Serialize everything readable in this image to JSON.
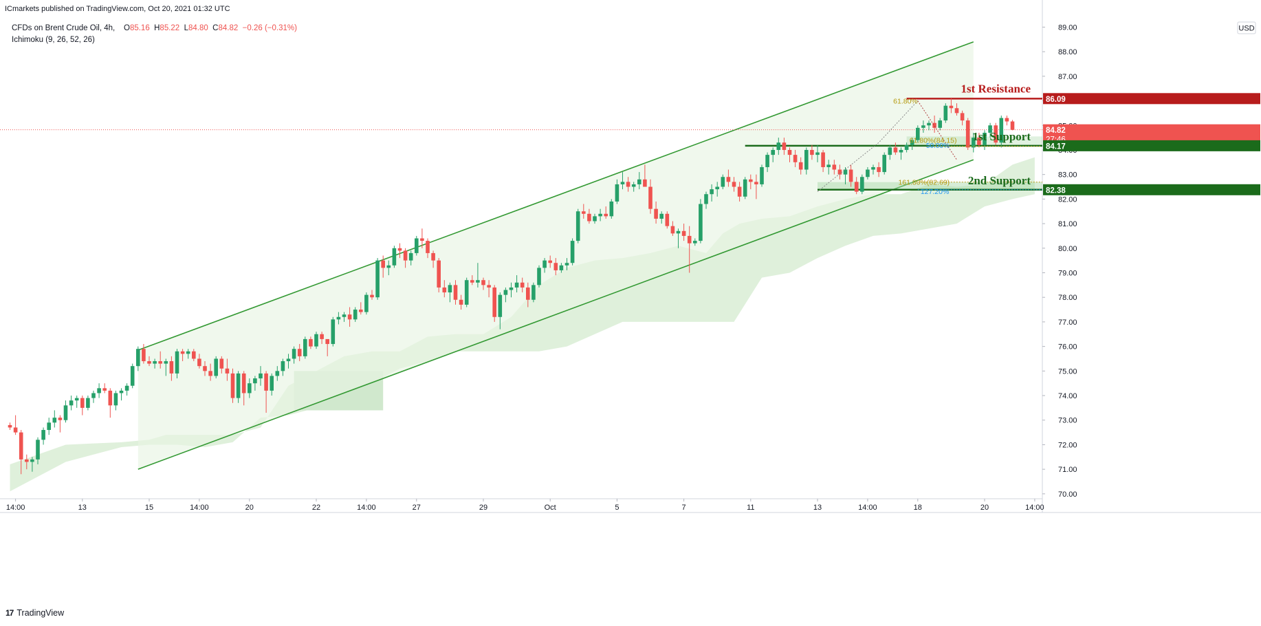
{
  "header": {
    "published": "ICmarkets published on TradingView.com, Oct 20, 2021 01:32 UTC",
    "symbol": "CFDs on Brent Crude Oil, 4h,",
    "ohlc": {
      "o_label": "O",
      "o": "85.16",
      "h_label": "H",
      "h": "85.22",
      "l_label": "L",
      "l": "84.80",
      "c_label": "C",
      "c": "84.82",
      "change": "−0.26 (−0.31%)"
    },
    "indicator": "Ichimoku (9, 26, 52, 26)"
  },
  "currency": "USD",
  "footer": {
    "brand": "TradingView",
    "logo": "17"
  },
  "colors": {
    "bull": "#26a069",
    "bear": "#ef5350",
    "channel": "#339933",
    "channel_fill": "#e8f5e3",
    "cloud": "#dff0db",
    "cloud_dark": "#d0e8cd",
    "resistance": "#b71c1c",
    "support": "#1b6b1b",
    "fib_gold": "#b59a10",
    "fib_blue": "#2196f3"
  },
  "chart_data": {
    "type": "candlestick",
    "y_range": [
      69.8,
      89.6
    ],
    "y_ticks": [
      "89.00",
      "88.00",
      "87.00",
      "86.00",
      "85.00",
      "84.00",
      "83.00",
      "82.00",
      "81.00",
      "80.00",
      "79.00",
      "78.00",
      "77.00",
      "76.00",
      "75.00",
      "74.00",
      "73.00",
      "72.00",
      "71.00",
      "70.00"
    ],
    "x_ticks": [
      {
        "label": "14:00",
        "i": 1
      },
      {
        "label": "13",
        "i": 13
      },
      {
        "label": "15",
        "i": 25
      },
      {
        "label": "14:00",
        "i": 34
      },
      {
        "label": "20",
        "i": 43
      },
      {
        "label": "22",
        "i": 55
      },
      {
        "label": "14:00",
        "i": 64
      },
      {
        "label": "27",
        "i": 73
      },
      {
        "label": "29",
        "i": 85
      },
      {
        "label": "Oct",
        "i": 97
      },
      {
        "label": "5",
        "i": 109
      },
      {
        "label": "7",
        "i": 121
      },
      {
        "label": "11",
        "i": 133
      },
      {
        "label": "13",
        "i": 145
      },
      {
        "label": "14:00",
        "i": 154
      },
      {
        "label": "18",
        "i": 163
      },
      {
        "label": "20",
        "i": 175
      },
      {
        "label": "14:00",
        "i": 184
      }
    ],
    "candles": [
      [
        72.8,
        72.9,
        72.6,
        72.7
      ],
      [
        72.7,
        73.2,
        72.4,
        72.5
      ],
      [
        72.5,
        72.6,
        70.8,
        71.4
      ],
      [
        71.4,
        71.6,
        71.0,
        71.3
      ],
      [
        71.3,
        71.5,
        70.9,
        71.4
      ],
      [
        71.4,
        72.3,
        71.2,
        72.2
      ],
      [
        72.2,
        72.7,
        72.0,
        72.6
      ],
      [
        72.6,
        73.1,
        72.4,
        72.9
      ],
      [
        72.9,
        73.4,
        72.7,
        73.1
      ],
      [
        73.1,
        73.2,
        72.5,
        73.0
      ],
      [
        73.0,
        73.8,
        72.9,
        73.6
      ],
      [
        73.6,
        74.0,
        73.4,
        73.8
      ],
      [
        73.8,
        74.0,
        73.5,
        73.9
      ],
      [
        73.9,
        74.0,
        73.2,
        73.5
      ],
      [
        73.5,
        74.0,
        73.4,
        73.9
      ],
      [
        73.9,
        74.2,
        73.7,
        74.1
      ],
      [
        74.1,
        74.5,
        73.9,
        74.3
      ],
      [
        74.3,
        74.5,
        74.1,
        74.2
      ],
      [
        74.2,
        74.3,
        73.1,
        73.6
      ],
      [
        73.6,
        74.2,
        73.4,
        74.1
      ],
      [
        74.1,
        74.3,
        73.8,
        74.2
      ],
      [
        74.2,
        74.5,
        74.0,
        74.4
      ],
      [
        74.4,
        75.3,
        74.3,
        75.2
      ],
      [
        75.2,
        76.0,
        75.0,
        75.9
      ],
      [
        75.9,
        76.1,
        75.3,
        75.4
      ],
      [
        75.4,
        75.6,
        75.2,
        75.3
      ],
      [
        75.3,
        75.5,
        75.1,
        75.4
      ],
      [
        75.4,
        75.8,
        75.1,
        75.3
      ],
      [
        75.3,
        75.5,
        74.8,
        75.4
      ],
      [
        75.4,
        75.6,
        74.6,
        74.9
      ],
      [
        74.9,
        75.9,
        74.7,
        75.8
      ],
      [
        75.8,
        75.9,
        75.4,
        75.7
      ],
      [
        75.7,
        75.9,
        75.5,
        75.8
      ],
      [
        75.8,
        75.9,
        75.4,
        75.5
      ],
      [
        75.5,
        75.7,
        75.1,
        75.2
      ],
      [
        75.2,
        75.4,
        74.8,
        75.0
      ],
      [
        75.0,
        75.3,
        74.6,
        74.8
      ],
      [
        74.8,
        75.6,
        74.7,
        75.5
      ],
      [
        75.5,
        75.6,
        74.9,
        75.1
      ],
      [
        75.1,
        75.5,
        74.6,
        74.9
      ],
      [
        74.9,
        75.1,
        73.7,
        73.9
      ],
      [
        73.9,
        75.0,
        73.7,
        74.9
      ],
      [
        74.9,
        75.0,
        73.6,
        74.1
      ],
      [
        74.1,
        74.7,
        73.9,
        74.5
      ],
      [
        74.5,
        74.8,
        74.2,
        74.7
      ],
      [
        74.7,
        75.2,
        74.4,
        74.9
      ],
      [
        74.9,
        75.0,
        73.3,
        74.2
      ],
      [
        74.2,
        74.9,
        74.0,
        74.8
      ],
      [
        74.8,
        75.2,
        74.6,
        75.0
      ],
      [
        75.0,
        75.5,
        74.8,
        75.4
      ],
      [
        75.4,
        75.7,
        75.1,
        75.5
      ],
      [
        75.5,
        76.0,
        75.3,
        75.9
      ],
      [
        75.9,
        76.1,
        75.4,
        75.6
      ],
      [
        75.6,
        76.4,
        75.5,
        76.3
      ],
      [
        76.3,
        76.4,
        75.9,
        76.0
      ],
      [
        76.0,
        76.6,
        75.9,
        76.5
      ],
      [
        76.5,
        76.6,
        76.1,
        76.3
      ],
      [
        76.3,
        76.2,
        75.6,
        76.1
      ],
      [
        76.1,
        77.2,
        76.0,
        77.1
      ],
      [
        77.1,
        77.4,
        76.9,
        77.2
      ],
      [
        77.2,
        77.4,
        77.0,
        77.3
      ],
      [
        77.3,
        77.6,
        76.8,
        77.1
      ],
      [
        77.1,
        77.6,
        77.0,
        77.5
      ],
      [
        77.5,
        77.8,
        77.3,
        77.4
      ],
      [
        77.4,
        78.2,
        77.3,
        78.1
      ],
      [
        78.1,
        78.3,
        77.9,
        78.0
      ],
      [
        78.0,
        79.6,
        77.9,
        79.5
      ],
      [
        79.5,
        79.7,
        78.8,
        79.2
      ],
      [
        79.2,
        79.5,
        78.9,
        79.3
      ],
      [
        79.3,
        80.1,
        79.2,
        80.0
      ],
      [
        80.0,
        80.2,
        79.6,
        79.9
      ],
      [
        79.9,
        80.0,
        79.2,
        79.5
      ],
      [
        79.5,
        79.9,
        79.3,
        79.8
      ],
      [
        79.8,
        80.5,
        79.7,
        80.4
      ],
      [
        80.4,
        80.8,
        80.0,
        80.3
      ],
      [
        80.3,
        80.4,
        79.6,
        79.8
      ],
      [
        79.8,
        79.9,
        79.2,
        79.5
      ],
      [
        79.5,
        79.6,
        78.2,
        78.4
      ],
      [
        78.4,
        78.7,
        78.0,
        78.2
      ],
      [
        78.2,
        78.6,
        77.8,
        78.5
      ],
      [
        78.5,
        78.7,
        77.7,
        77.9
      ],
      [
        77.9,
        78.1,
        77.5,
        77.7
      ],
      [
        77.7,
        78.8,
        77.6,
        78.7
      ],
      [
        78.7,
        78.9,
        78.5,
        78.6
      ],
      [
        78.6,
        79.4,
        78.4,
        78.7
      ],
      [
        78.7,
        78.8,
        78.3,
        78.5
      ],
      [
        78.5,
        78.7,
        78.0,
        78.4
      ],
      [
        78.4,
        78.5,
        77.0,
        77.2
      ],
      [
        77.2,
        78.2,
        76.7,
        78.1
      ],
      [
        78.1,
        78.4,
        77.8,
        78.3
      ],
      [
        78.3,
        78.6,
        78.0,
        78.4
      ],
      [
        78.4,
        78.9,
        78.2,
        78.6
      ],
      [
        78.6,
        78.8,
        78.2,
        78.4
      ],
      [
        78.4,
        78.6,
        77.6,
        77.9
      ],
      [
        77.9,
        78.6,
        77.8,
        78.5
      ],
      [
        78.5,
        79.3,
        78.4,
        79.2
      ],
      [
        79.2,
        79.6,
        79.0,
        79.5
      ],
      [
        79.5,
        79.7,
        79.2,
        79.4
      ],
      [
        79.4,
        79.6,
        78.9,
        79.1
      ],
      [
        79.1,
        79.4,
        79.0,
        79.3
      ],
      [
        79.3,
        79.6,
        79.1,
        79.4
      ],
      [
        79.4,
        80.4,
        79.3,
        80.3
      ],
      [
        80.3,
        81.6,
        80.2,
        81.5
      ],
      [
        81.5,
        81.8,
        81.2,
        81.4
      ],
      [
        81.4,
        81.6,
        81.0,
        81.1
      ],
      [
        81.1,
        81.4,
        81.0,
        81.3
      ],
      [
        81.3,
        81.6,
        81.1,
        81.4
      ],
      [
        81.4,
        81.7,
        81.2,
        81.3
      ],
      [
        81.3,
        82.0,
        81.2,
        81.9
      ],
      [
        81.9,
        82.8,
        81.8,
        82.6
      ],
      [
        82.6,
        83.1,
        82.4,
        82.7
      ],
      [
        82.7,
        82.9,
        82.3,
        82.5
      ],
      [
        82.5,
        82.7,
        82.3,
        82.6
      ],
      [
        82.6,
        83.1,
        82.4,
        82.8
      ],
      [
        82.8,
        83.4,
        82.6,
        82.5
      ],
      [
        82.5,
        82.8,
        81.4,
        81.6
      ],
      [
        81.6,
        81.9,
        81.0,
        81.2
      ],
      [
        81.2,
        81.5,
        81.0,
        81.4
      ],
      [
        81.4,
        81.5,
        80.8,
        80.9
      ],
      [
        80.9,
        81.1,
        80.5,
        80.6
      ],
      [
        80.6,
        80.8,
        80.0,
        80.7
      ],
      [
        80.7,
        81.0,
        80.3,
        80.5
      ],
      [
        80.5,
        80.9,
        79.0,
        80.2
      ],
      [
        80.2,
        80.4,
        80.1,
        80.3
      ],
      [
        80.3,
        82.0,
        80.2,
        81.8
      ],
      [
        81.8,
        82.3,
        81.6,
        82.2
      ],
      [
        82.2,
        82.6,
        81.9,
        82.4
      ],
      [
        82.4,
        82.7,
        82.1,
        82.5
      ],
      [
        82.5,
        83.0,
        82.4,
        82.9
      ],
      [
        82.9,
        83.2,
        82.5,
        82.7
      ],
      [
        82.7,
        82.9,
        82.3,
        82.5
      ],
      [
        82.5,
        82.7,
        81.9,
        82.1
      ],
      [
        82.1,
        82.9,
        82.0,
        82.8
      ],
      [
        82.8,
        83.0,
        82.4,
        82.7
      ],
      [
        82.7,
        83.0,
        82.0,
        82.6
      ],
      [
        82.6,
        83.4,
        82.5,
        83.3
      ],
      [
        83.3,
        83.9,
        83.1,
        83.8
      ],
      [
        83.8,
        84.1,
        83.5,
        84.0
      ],
      [
        84.0,
        84.5,
        83.8,
        84.3
      ],
      [
        84.3,
        84.5,
        83.8,
        84.0
      ],
      [
        84.0,
        84.1,
        83.5,
        83.8
      ],
      [
        83.8,
        84.0,
        83.3,
        83.5
      ],
      [
        83.5,
        83.7,
        83.0,
        83.2
      ],
      [
        83.2,
        84.1,
        83.0,
        84.0
      ],
      [
        84.0,
        84.2,
        83.6,
        83.8
      ],
      [
        83.8,
        84.2,
        83.5,
        83.9
      ],
      [
        83.9,
        84.0,
        83.1,
        83.3
      ],
      [
        83.3,
        83.6,
        83.0,
        83.4
      ],
      [
        83.4,
        83.6,
        83.0,
        83.2
      ],
      [
        83.2,
        83.4,
        82.8,
        83.0
      ],
      [
        83.0,
        83.3,
        82.6,
        83.2
      ],
      [
        83.2,
        83.4,
        82.5,
        82.7
      ],
      [
        82.7,
        82.9,
        82.2,
        82.3
      ],
      [
        82.3,
        83.0,
        82.2,
        82.9
      ],
      [
        82.9,
        83.3,
        82.8,
        83.2
      ],
      [
        83.2,
        83.4,
        83.0,
        83.3
      ],
      [
        83.3,
        83.5,
        82.9,
        83.1
      ],
      [
        83.1,
        83.9,
        83.0,
        83.8
      ],
      [
        83.8,
        84.2,
        83.6,
        84.1
      ],
      [
        84.1,
        84.3,
        83.8,
        83.9
      ],
      [
        83.9,
        84.1,
        83.6,
        84.0
      ],
      [
        84.0,
        84.3,
        83.9,
        84.2
      ],
      [
        84.2,
        84.5,
        84.0,
        84.4
      ],
      [
        84.4,
        85.0,
        84.3,
        84.9
      ],
      [
        84.9,
        85.2,
        84.7,
        85.0
      ],
      [
        85.0,
        85.2,
        84.8,
        85.1
      ],
      [
        85.1,
        85.4,
        84.7,
        84.9
      ],
      [
        84.9,
        85.3,
        84.8,
        85.2
      ],
      [
        85.2,
        85.9,
        85.1,
        85.8
      ],
      [
        85.8,
        86.1,
        85.5,
        85.7
      ],
      [
        85.7,
        85.9,
        85.4,
        85.5
      ],
      [
        85.5,
        85.6,
        85.0,
        85.2
      ],
      [
        85.2,
        85.3,
        84.0,
        84.1
      ],
      [
        84.1,
        84.7,
        83.9,
        84.5
      ],
      [
        84.5,
        84.7,
        84.1,
        84.2
      ],
      [
        84.2,
        84.8,
        84.0,
        84.7
      ],
      [
        84.7,
        85.1,
        84.5,
        85.0
      ],
      [
        85.0,
        85.1,
        84.2,
        84.3
      ],
      [
        84.3,
        85.4,
        84.1,
        85.3
      ],
      [
        85.3,
        85.4,
        85.0,
        85.16
      ],
      [
        85.16,
        85.22,
        84.8,
        84.82
      ]
    ],
    "price_labels": {
      "resistance": "86.09",
      "last": "84.82",
      "countdown": "27:46",
      "support1": "84.17",
      "support2": "82.38"
    },
    "levels": {
      "resistance_1": 86.09,
      "support_1": 84.17,
      "support_2": 82.38,
      "last_price": 84.82
    },
    "annotations": {
      "resistance_1": "1st Resistance",
      "support_1": "1st Support",
      "support_2": "2nd Support",
      "fib_top": "61.80%",
      "fib_mid": "61.80%(84.15)",
      "fib_mid_blue": "50.00%",
      "fib_ext": "161.80%(82.69)",
      "fib_ext_blue": "127.20%"
    }
  }
}
